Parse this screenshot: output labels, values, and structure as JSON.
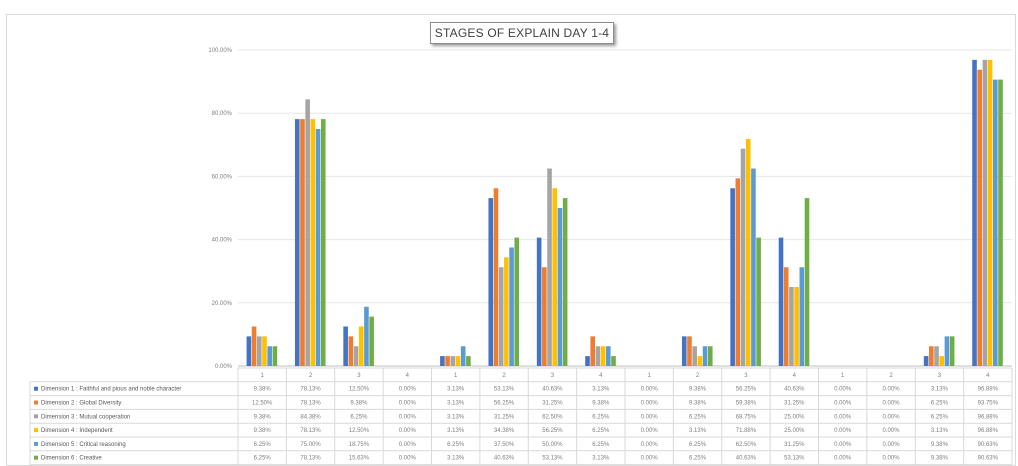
{
  "chart_data": {
    "type": "bar",
    "title": "STAGES OF EXPLAIN DAY 1-4",
    "xlabel": "",
    "ylabel": "",
    "ylim": [
      0,
      100
    ],
    "y_tick_labels": [
      "0.00%",
      "20.00%",
      "40.00%",
      "60.00%",
      "80.00%",
      "100.00%"
    ],
    "categories": [
      "1",
      "2",
      "3",
      "4",
      "1",
      "2",
      "3",
      "4",
      "1",
      "2",
      "3",
      "4",
      "1",
      "2",
      "3",
      "4"
    ],
    "grid": true,
    "legend": "table-below",
    "series": [
      {
        "name": "Dimension 1 : Faithful and pious and noble character",
        "color": "#4472c4",
        "values": [
          9.38,
          78.13,
          12.5,
          0,
          3.13,
          53.13,
          40.63,
          3.13,
          0,
          9.38,
          56.25,
          40.63,
          0,
          0,
          3.13,
          96.88
        ],
        "labels": [
          "9.38%",
          "78.13%",
          "12.50%",
          "0.00%",
          "3.13%",
          "53.13%",
          "40.63%",
          "3.13%",
          "0.00%",
          "9.38%",
          "56.25%",
          "40.63%",
          "0.00%",
          "0.00%",
          "3.13%",
          "96.88%"
        ]
      },
      {
        "name": "Dimension 2 : Global Diversity",
        "color": "#ed7d31",
        "values": [
          12.5,
          78.13,
          9.38,
          0,
          3.13,
          56.25,
          31.25,
          9.38,
          0,
          9.38,
          59.38,
          31.25,
          0,
          0,
          6.25,
          93.75
        ],
        "labels": [
          "12.50%",
          "78.13%",
          "9.38%",
          "0.00%",
          "3.13%",
          "56.25%",
          "31.25%",
          "9.38%",
          "0.00%",
          "9.38%",
          "59.38%",
          "31.25%",
          "0.00%",
          "0.00%",
          "6.25%",
          "93.75%"
        ]
      },
      {
        "name": "Dimension 3 : Mutual cooperation",
        "color": "#a5a5a5",
        "values": [
          9.38,
          84.38,
          6.25,
          0,
          3.13,
          31.25,
          62.5,
          6.25,
          0,
          6.25,
          68.75,
          25,
          0,
          0,
          6.25,
          96.88
        ],
        "labels": [
          "9.38%",
          "84.38%",
          "6.25%",
          "0.00%",
          "3.13%",
          "31.25%",
          "62.50%",
          "6.25%",
          "0.00%",
          "6.25%",
          "68.75%",
          "25.00%",
          "0.00%",
          "0.00%",
          "6.25%",
          "96.88%"
        ]
      },
      {
        "name": "Dimension 4 : Independent",
        "color": "#ffc000",
        "values": [
          9.38,
          78.13,
          12.5,
          0,
          3.13,
          34.38,
          56.25,
          6.25,
          0,
          3.13,
          71.88,
          25,
          0,
          0,
          3.13,
          96.88
        ],
        "labels": [
          "9.38%",
          "78.13%",
          "12.50%",
          "0.00%",
          "3.13%",
          "34.38%",
          "56.25%",
          "6.25%",
          "0.00%",
          "3.13%",
          "71.88%",
          "25.00%",
          "0.00%",
          "0.00%",
          "3.13%",
          "96.88%"
        ]
      },
      {
        "name": "Dimension 5 : Critical reasoning",
        "color": "#5b9bd5",
        "values": [
          6.25,
          75,
          18.75,
          0,
          6.25,
          37.5,
          50,
          6.25,
          0,
          6.25,
          62.5,
          31.25,
          0,
          0,
          9.38,
          90.63
        ],
        "labels": [
          "6.25%",
          "75.00%",
          "18.75%",
          "0.00%",
          "6.25%",
          "37.50%",
          "50.00%",
          "6.25%",
          "0.00%",
          "6.25%",
          "62.50%",
          "31.25%",
          "0.00%",
          "0.00%",
          "9.38%",
          "90.63%"
        ]
      },
      {
        "name": "Dimension 6 : Creative",
        "color": "#70ad47",
        "values": [
          6.25,
          78.13,
          15.63,
          0,
          3.13,
          40.63,
          53.13,
          3.13,
          0,
          6.25,
          40.63,
          53.13,
          0,
          0,
          9.38,
          90.63
        ],
        "labels": [
          "6.25%",
          "78.13%",
          "15.63%",
          "0.00%",
          "3.13%",
          "40.63%",
          "53.13%",
          "3.13%",
          "0.00%",
          "6.25%",
          "40.63%",
          "53.13%",
          "0.00%",
          "0.00%",
          "9.38%",
          "90.63%"
        ]
      }
    ]
  }
}
